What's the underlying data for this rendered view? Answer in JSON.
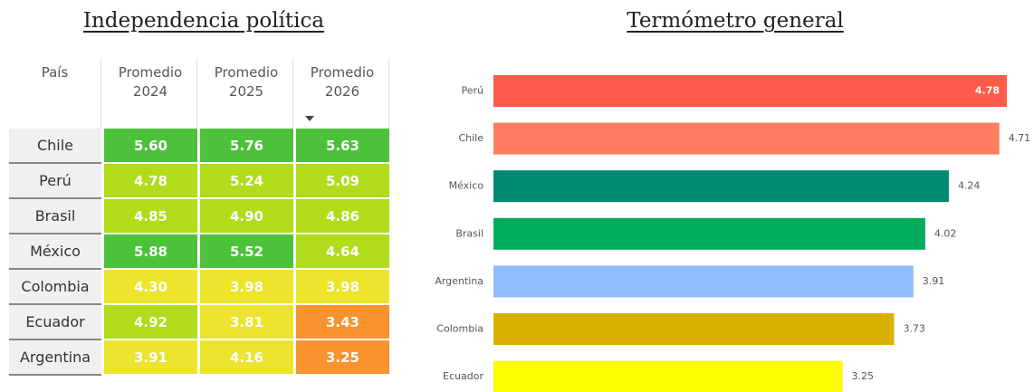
{
  "table": {
    "title": "Independencia política",
    "columns": [
      "País",
      "Promedio 2024",
      "Promedio 2025",
      "Promedio 2026"
    ],
    "rows": [
      [
        "Chile",
        "5.60",
        "5.76",
        "5.63"
      ],
      [
        "Perú",
        "4.78",
        "5.24",
        "5.09"
      ],
      [
        "Brasil",
        "4.85",
        "4.90",
        "4.86"
      ],
      [
        "México",
        "5.88",
        "5.52",
        "4.64"
      ],
      [
        "Colombia",
        "4.30",
        "3.98",
        "3.98"
      ],
      [
        "Ecuador",
        "4.92",
        "3.81",
        "3.43"
      ],
      [
        "Argentina",
        "3.91",
        "4.16",
        "3.25"
      ]
    ],
    "colors": [
      [
        "#4cc23a",
        "#4cc23a",
        "#4cc23a"
      ],
      [
        "#b0dc1a",
        "#b0dc1a",
        "#b0dc1a"
      ],
      [
        "#b0dc1a",
        "#b0dc1a",
        "#b0dc1a"
      ],
      [
        "#4cc23a",
        "#4cc23a",
        "#b0dc1a"
      ],
      [
        "#ece42c",
        "#ece42c",
        "#ece42c"
      ],
      [
        "#b0dc1a",
        "#ece42c",
        "#f9932d"
      ],
      [
        "#ece42c",
        "#ece42c",
        "#f9932d"
      ]
    ]
  },
  "chart_data": {
    "type": "hbar",
    "title": "Termómetro general",
    "categories": [
      "Perú",
      "Chile",
      "México",
      "Brasil",
      "Argentina",
      "Colombia",
      "Ecuador"
    ],
    "values": [
      4.78,
      4.71,
      4.24,
      4.02,
      3.91,
      3.73,
      3.25
    ],
    "colors": [
      "#fd5a4a",
      "#fe7c60",
      "#008a72",
      "#00ad5e",
      "#8fbcfb",
      "#d9b000",
      "#fdfd00"
    ]
  }
}
